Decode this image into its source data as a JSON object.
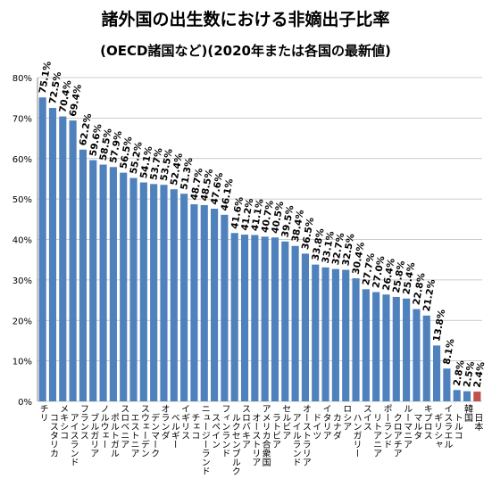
{
  "chart_data": {
    "type": "bar",
    "title": "諸外国の出生数における非嫡出子比率",
    "subtitle": "(OECD諸国など)(2020年または各国の最新値)",
    "categories": [
      "チリ",
      "コスタリカ",
      "メキシコ",
      "アイスランド",
      "フランス",
      "ブルガリア",
      "ノルウェー",
      "ポルトガル",
      "スロベニア",
      "エストニア",
      "スウェーデン",
      "デンマーク",
      "オランダ",
      "ベルギー",
      "イギリス",
      "チェコ",
      "ニュージーランド",
      "スペイン",
      "フィンランド",
      "ルクセンブルク",
      "スロバキア",
      "オーストリア",
      "アメリカ合衆国",
      "ラトビア",
      "セルビア",
      "アイルランド",
      "オーストラリア",
      "ドイツ",
      "イタリア",
      "カナダ",
      "ロシア",
      "ハンガリー",
      "スイス",
      "リトアニア",
      "ポーランド",
      "クロアチア",
      "ルーマニア",
      "マルタ",
      "キプロス",
      "ギリシャ",
      "イスラエル",
      "トルコ",
      "韓国",
      "日本"
    ],
    "values": [
      75.1,
      72.5,
      70.4,
      69.4,
      62.2,
      59.6,
      58.5,
      57.9,
      56.5,
      55.2,
      54.1,
      53.7,
      53.5,
      52.4,
      51.3,
      48.7,
      48.5,
      47.6,
      46.1,
      41.6,
      41.2,
      41.1,
      40.7,
      40.5,
      39.5,
      38.4,
      36.5,
      33.8,
      33.1,
      32.7,
      32.5,
      30.4,
      27.7,
      27.0,
      26.4,
      25.8,
      25.4,
      22.8,
      21.2,
      13.8,
      8.1,
      2.8,
      2.5,
      2.4
    ],
    "value_labels": [
      "75.1%",
      "72.5%",
      "70.4%",
      "69.4%",
      "62.2%",
      "59.6%",
      "58.5%",
      "57.9%",
      "56.5%",
      "55.2%",
      "54.1%",
      "53.7%",
      "53.5%",
      "52.4%",
      "51.3%",
      "48.7%",
      "48.5%",
      "47.6%",
      "46.1%",
      "41.6%",
      "41.2%",
      "41.1%",
      "40.7%",
      "40.5%",
      "39.5%",
      "38.4%",
      "36.5%",
      "33.8%",
      "33.1%",
      "32.7%",
      "32.5%",
      "30.4%",
      "27.7%",
      "27.0%",
      "26.4%",
      "25.8%",
      "25.4%",
      "22.8%",
      "21.2%",
      "13.8%",
      "8.1%",
      "2.8%",
      "2.5%",
      "2.4%"
    ],
    "color": "#4f81bd",
    "highlight_color": "#c0504d",
    "highlight": "日本",
    "ylim": [
      0,
      80
    ],
    "yticks": [
      {
        "value": 0,
        "label": "0%"
      },
      {
        "value": 10,
        "label": "10%"
      },
      {
        "value": 20,
        "label": "20%"
      },
      {
        "value": 30,
        "label": "30%"
      },
      {
        "value": 40,
        "label": "40%"
      },
      {
        "value": 50,
        "label": "50%"
      },
      {
        "value": 60,
        "label": "60%"
      },
      {
        "value": 70,
        "label": "70%"
      },
      {
        "value": 80,
        "label": "80%"
      }
    ],
    "grid": true
  }
}
